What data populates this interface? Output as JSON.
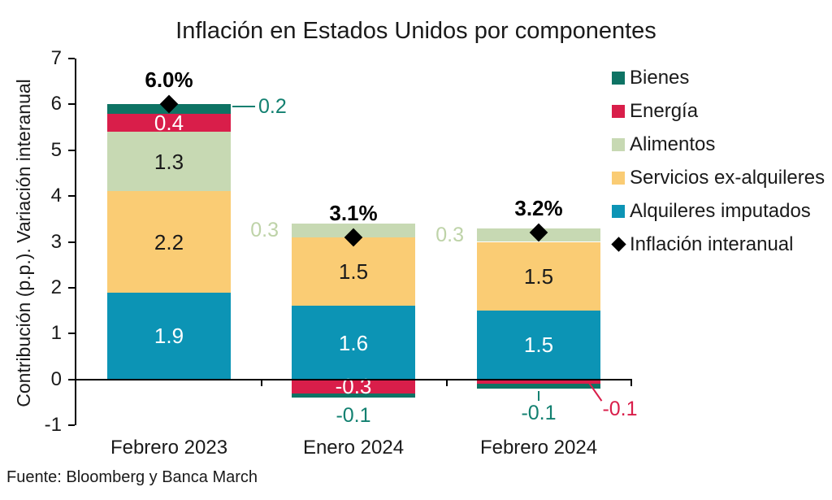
{
  "title": "Inflación en Estados Unidos por componentes",
  "source": "Fuente: Bloomberg y Banca March",
  "colors": {
    "bienes": "#0E7364",
    "energia": "#D91E4A",
    "alimentos": "#C7D9B3",
    "servicios": "#FACC74",
    "alquileres": "#0C94B5",
    "diamond": "#000000",
    "teal_label": "#128070",
    "green_label": "#BED3A8",
    "red_label": "#D91E4A",
    "axis": "#000000",
    "inside_light_text": "#FFFFFF",
    "inside_dark_text": "#1A1A1A"
  },
  "legend": {
    "items": [
      {
        "label": "Bienes",
        "color": "#0E7364",
        "marker": "square"
      },
      {
        "label": "Energía",
        "color": "#D91E4A",
        "marker": "square"
      },
      {
        "label": "Alimentos",
        "color": "#C7D9B3",
        "marker": "square"
      },
      {
        "label": "Servicios ex-alquileres",
        "color": "#FACC74",
        "marker": "square"
      },
      {
        "label": "Alquileres imputados",
        "color": "#0C94B5",
        "marker": "square"
      },
      {
        "label": "Inflación interanual",
        "color": "#000000",
        "marker": "diamond"
      }
    ]
  },
  "chart_data": {
    "type": "bar",
    "stacked": true,
    "title": "Inflación en Estados Unidos por componentes",
    "ylabel": "Contribución (p.p.). Variación interanual",
    "xlabel": "",
    "ylim": [
      -1,
      7
    ],
    "yticks": [
      "7",
      "6",
      "5",
      "4",
      "3",
      "2",
      "1",
      "0",
      "-1"
    ],
    "grid": false,
    "legend_position": "right",
    "categories": [
      "Febrero 2023",
      "Enero 2024",
      "Febrero 2024"
    ],
    "series": [
      {
        "name": "Alquileres imputados",
        "color": "#0C94B5",
        "values": [
          1.9,
          1.6,
          1.5
        ]
      },
      {
        "name": "Servicios ex-alquileres",
        "color": "#FACC74",
        "values": [
          2.2,
          1.5,
          1.5
        ]
      },
      {
        "name": "Alimentos",
        "color": "#C7D9B3",
        "values": [
          1.3,
          0.3,
          0.3
        ]
      },
      {
        "name": "Energía",
        "color": "#D91E4A",
        "values": [
          0.4,
          -0.3,
          -0.1
        ]
      },
      {
        "name": "Bienes",
        "color": "#0E7364",
        "values": [
          0.2,
          -0.1,
          -0.1
        ]
      }
    ],
    "totals": {
      "name": "Inflación interanual",
      "values": [
        6.0,
        3.1,
        3.2
      ],
      "labels": [
        "6.0%",
        "3.1%",
        "3.2%"
      ]
    },
    "segment_labels": [
      {
        "bar": 0,
        "series": "Alquileres imputados",
        "text": "1.9",
        "mode": "inside-light"
      },
      {
        "bar": 0,
        "series": "Servicios ex-alquileres",
        "text": "2.2",
        "mode": "inside-dark"
      },
      {
        "bar": 0,
        "series": "Alimentos",
        "text": "1.3",
        "mode": "inside-dark"
      },
      {
        "bar": 0,
        "series": "Energía",
        "text": "0.4",
        "mode": "inside-light"
      },
      {
        "bar": 0,
        "series": "Bienes",
        "text": "0.2",
        "mode": "callout-right"
      },
      {
        "bar": 1,
        "series": "Alquileres imputados",
        "text": "1.6",
        "mode": "inside-light"
      },
      {
        "bar": 1,
        "series": "Servicios ex-alquileres",
        "text": "1.5",
        "mode": "inside-dark"
      },
      {
        "bar": 1,
        "series": "Alimentos",
        "text": "0.3",
        "mode": "callout-left"
      },
      {
        "bar": 1,
        "series": "Energía",
        "text": "-0.3",
        "mode": "inside-light"
      },
      {
        "bar": 1,
        "series": "Bienes",
        "text": "-0.1",
        "mode": "below"
      },
      {
        "bar": 2,
        "series": "Alquileres imputados",
        "text": "1.5",
        "mode": "inside-light"
      },
      {
        "bar": 2,
        "series": "Servicios ex-alquileres",
        "text": "1.5",
        "mode": "inside-dark"
      },
      {
        "bar": 2,
        "series": "Alimentos",
        "text": "0.3",
        "mode": "callout-left"
      },
      {
        "bar": 2,
        "series": "Energía",
        "text": "-0.1",
        "mode": "callout-diag-red"
      },
      {
        "bar": 2,
        "series": "Bienes",
        "text": "-0.1",
        "mode": "below-leader"
      }
    ]
  }
}
